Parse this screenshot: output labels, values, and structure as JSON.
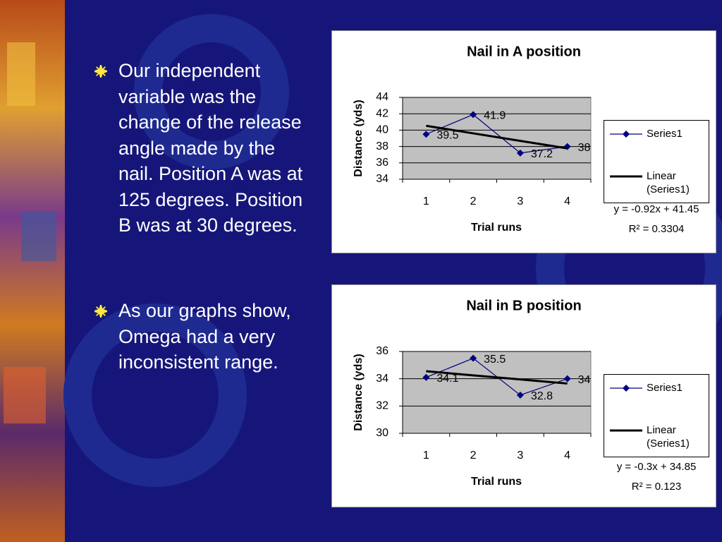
{
  "bullets": [
    "Our independent variable was the change of the release angle made by the nail. Position A was at 125 degrees. Position B was at 30 degrees.",
    "As our graphs show, Omega had a very inconsistent range."
  ],
  "chart_data": [
    {
      "type": "line",
      "title": "Nail in A position",
      "x_label": "Trial runs",
      "y_label": "Distance (yds)",
      "categories": [
        "1",
        "2",
        "3",
        "4"
      ],
      "series": [
        {
          "name": "Series1",
          "color": "#000080",
          "values": [
            39.5,
            41.9,
            37.2,
            38
          ]
        },
        {
          "name": "Linear (Series1)",
          "color": "#000000",
          "values": [
            40.53,
            39.61,
            38.69,
            37.77
          ]
        }
      ],
      "ylim": [
        34,
        44
      ],
      "yticks": [
        34,
        36,
        38,
        40,
        42,
        44
      ],
      "grid": true,
      "legend": "right",
      "annotations": [
        "y = -0.92x + 41.45",
        "R² = 0.3304"
      ]
    },
    {
      "type": "line",
      "title": "Nail in B position",
      "x_label": "Trial runs",
      "y_label": "Distance (yds)",
      "categories": [
        "1",
        "2",
        "3",
        "4"
      ],
      "series": [
        {
          "name": "Series1",
          "color": "#000080",
          "values": [
            34.1,
            35.5,
            32.8,
            34
          ]
        },
        {
          "name": "Linear (Series1)",
          "color": "#000000",
          "values": [
            34.55,
            34.25,
            33.95,
            33.65
          ]
        }
      ],
      "ylim": [
        30,
        36
      ],
      "yticks": [
        30,
        32,
        34,
        36
      ],
      "grid": true,
      "legend": "right",
      "annotations": [
        "y = -0.3x + 34.85",
        "R² = 0.123"
      ]
    }
  ]
}
